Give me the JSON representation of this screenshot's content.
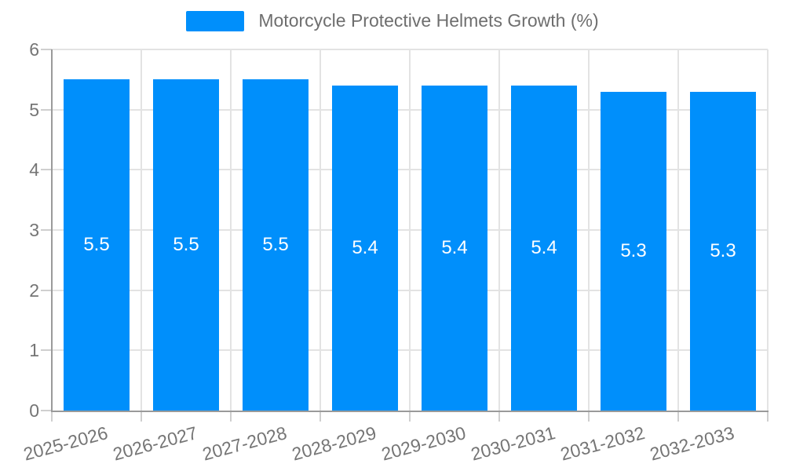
{
  "legend": {
    "label": "Motorcycle Protective Helmets Growth (%)"
  },
  "colors": {
    "bar": "#008FFB",
    "grid": "#e3e3e3",
    "axis": "#9a9a9a",
    "tick": "#cfcfcf",
    "tick_text": "#757575",
    "legend_text": "#6e6e6e",
    "bar_label_text": "#ffffff",
    "background": "#ffffff"
  },
  "chart_data": {
    "type": "bar",
    "title": "",
    "xlabel": "",
    "ylabel": "",
    "categories": [
      "2025-2026",
      "2026-2027",
      "2027-2028",
      "2028-2029",
      "2029-2030",
      "2030-2031",
      "2031-2032",
      "2032-2033"
    ],
    "series": [
      {
        "name": "Motorcycle Protective Helmets Growth (%)",
        "values": [
          5.5,
          5.5,
          5.5,
          5.4,
          5.4,
          5.4,
          5.3,
          5.3
        ]
      }
    ],
    "bar_labels": [
      "5.5",
      "5.5",
      "5.5",
      "5.4",
      "5.4",
      "5.4",
      "5.3",
      "5.3"
    ],
    "ylim": [
      0,
      6
    ],
    "yticks": [
      0,
      1,
      2,
      3,
      4,
      5,
      6
    ],
    "grid": true,
    "legend_position": "top",
    "x_label_rotation_deg": -15
  }
}
